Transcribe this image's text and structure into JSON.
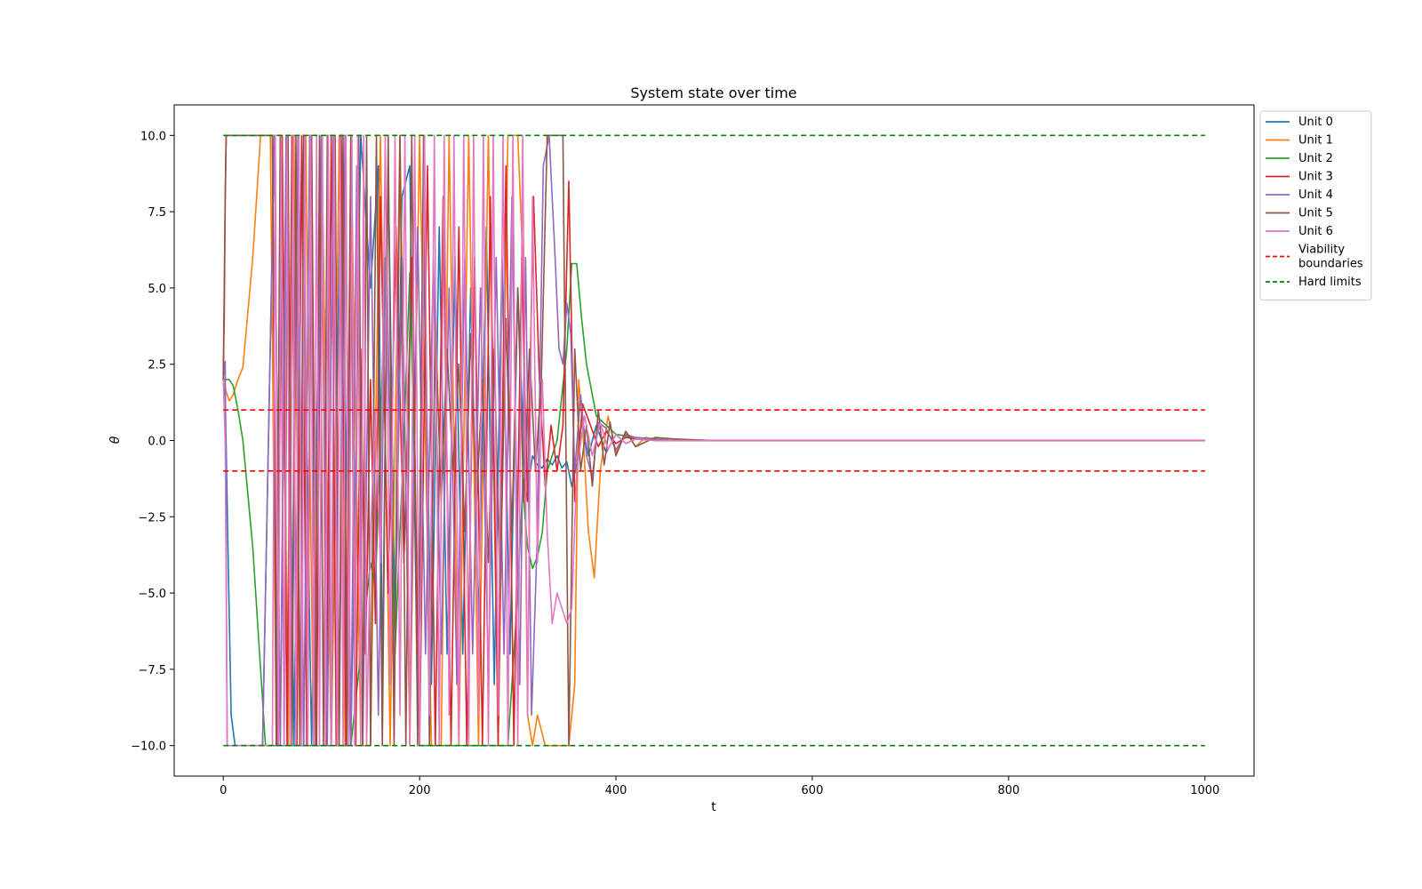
{
  "chart_data": {
    "type": "line",
    "title": "System state over time",
    "xlabel": "t",
    "ylabel": "θ",
    "xlim": [
      -50,
      1050
    ],
    "ylim": [
      -11,
      11
    ],
    "x_ticks": [
      0,
      200,
      400,
      600,
      800,
      1000
    ],
    "x_tick_labels": [
      "0",
      "200",
      "400",
      "600",
      "800",
      "1000"
    ],
    "y_ticks": [
      -10,
      -7.5,
      -5,
      -2.5,
      0,
      2.5,
      5,
      7.5,
      10
    ],
    "y_tick_labels": [
      "−10.0",
      "−7.5",
      "−5.0",
      "−2.5",
      "0.0",
      "2.5",
      "5.0",
      "7.5",
      "10.0"
    ],
    "grid": false,
    "legend_position": "outside-right",
    "series": [
      {
        "name": "Unit 0",
        "color": "#1f77b4",
        "x": [
          0,
          2,
          5,
          8,
          12,
          20,
          40,
          52,
          58,
          65,
          72,
          80,
          90,
          100,
          110,
          120,
          130,
          140,
          150,
          158,
          162,
          168,
          175,
          182,
          190,
          198,
          205,
          212,
          220,
          228,
          236,
          244,
          252,
          260,
          268,
          276,
          284,
          292,
          300,
          308,
          315,
          320,
          325,
          330,
          335,
          340,
          345,
          350,
          355,
          360,
          365,
          372,
          380,
          390,
          400,
          410,
          420,
          430,
          440,
          460,
          480,
          500,
          600,
          800,
          1000
        ],
        "values": [
          2,
          1.5,
          -4,
          -9,
          -10,
          -10,
          -10,
          10,
          -10,
          10,
          -10,
          10,
          -10,
          10,
          -10,
          10,
          -10,
          10,
          5,
          9,
          -8,
          9,
          -6,
          8,
          9,
          -9,
          6,
          -8,
          7,
          -7,
          6,
          -7,
          5,
          -6,
          7,
          -8,
          6,
          -7,
          5,
          -2,
          -0.5,
          -0.8,
          -0.9,
          -0.6,
          -0.8,
          -0.5,
          -0.9,
          -0.7,
          -1.5,
          -0.8,
          0.6,
          -0.5,
          0.5,
          -0.4,
          0.2,
          -0.1,
          0.05,
          0.02,
          0,
          0,
          0,
          0,
          0,
          0,
          0
        ]
      },
      {
        "name": "Unit 1",
        "color": "#ff7f0e",
        "x": [
          0,
          3,
          6,
          10,
          15,
          20,
          30,
          38,
          42,
          48,
          54,
          60,
          66,
          72,
          78,
          84,
          92,
          100,
          110,
          118,
          124,
          130,
          140,
          150,
          160,
          170,
          180,
          190,
          200,
          212,
          222,
          230,
          240,
          250,
          260,
          270,
          280,
          290,
          300,
          305,
          310,
          315,
          320,
          328,
          336,
          344,
          352,
          358,
          362,
          366,
          372,
          378,
          384,
          392,
          400,
          410,
          420,
          430,
          450,
          480,
          500,
          600,
          800,
          1000
        ],
        "values": [
          2,
          1.6,
          1.3,
          1.5,
          2,
          2.4,
          6,
          10,
          10,
          10,
          -10,
          10,
          -10,
          10,
          -10,
          10,
          -10,
          10,
          -10,
          10,
          -10,
          10,
          -10,
          -10,
          10,
          -10,
          10,
          -10,
          10,
          -10,
          -10,
          10,
          -10,
          10,
          -10,
          10,
          -10,
          10,
          10,
          6,
          -9,
          -10,
          -9,
          -10,
          -10,
          -10,
          -10,
          -8,
          2,
          0.5,
          -3,
          -4.5,
          -1,
          0.8,
          -0.4,
          0.3,
          -0.2,
          0.1,
          0,
          0,
          0,
          0,
          0,
          0
        ]
      },
      {
        "name": "Unit 2",
        "color": "#2ca02c",
        "x": [
          0,
          3,
          6,
          10,
          15,
          20,
          30,
          43,
          50,
          70,
          90,
          110,
          130,
          150,
          155,
          160,
          165,
          170,
          175,
          180,
          185,
          190,
          195,
          200,
          210,
          220,
          230,
          240,
          250,
          260,
          270,
          280,
          290,
          300,
          305,
          310,
          315,
          320,
          325,
          330,
          340,
          350,
          355,
          360,
          365,
          370,
          380,
          390,
          400,
          420,
          440,
          460,
          500,
          600,
          800,
          1000
        ],
        "values": [
          2,
          2,
          2,
          1.8,
          1,
          0,
          -3.5,
          -10,
          -10,
          -10,
          -10,
          -10,
          -10,
          -4,
          -4.8,
          0,
          6,
          0.5,
          -7,
          -3,
          1,
          5.5,
          -1,
          -10,
          -10,
          -10,
          -10,
          -10,
          -10,
          -10,
          -10,
          -10,
          -10,
          -5,
          -1.5,
          -3.5,
          -4.2,
          -3.8,
          -3,
          -1,
          0,
          3,
          5.8,
          5.8,
          4,
          2.5,
          0.8,
          0.5,
          0.2,
          0.1,
          0.05,
          0,
          0,
          0,
          0,
          0
        ]
      },
      {
        "name": "Unit 3",
        "color": "#d62728",
        "x": [
          0,
          1,
          2,
          3,
          5,
          10,
          20,
          40,
          50,
          55,
          60,
          65,
          70,
          75,
          80,
          85,
          90,
          95,
          100,
          105,
          110,
          115,
          120,
          125,
          130,
          135,
          140,
          145,
          150,
          155,
          160,
          168,
          176,
          184,
          192,
          200,
          208,
          216,
          224,
          232,
          240,
          248,
          256,
          264,
          272,
          280,
          288,
          296,
          304,
          310,
          316,
          322,
          328,
          334,
          340,
          346,
          352,
          358,
          366,
          374,
          382,
          390,
          400,
          410,
          420,
          440,
          460,
          500,
          600,
          800,
          1000
        ],
        "values": [
          2,
          4,
          8,
          10,
          10,
          10,
          10,
          10,
          10,
          -10,
          10,
          -10,
          10,
          -10,
          10,
          -10,
          10,
          -10,
          10,
          -10,
          10,
          -10,
          10,
          -10,
          10,
          -10,
          3,
          -7,
          2,
          -6,
          8,
          -5,
          7,
          -4,
          6,
          -10,
          9,
          -10,
          8,
          -10,
          7,
          -10,
          6,
          -10,
          8,
          -10,
          9,
          -10,
          6,
          -2,
          8,
          2,
          -1.5,
          0.5,
          -1,
          0.5,
          8.5,
          -2,
          1.2,
          0.5,
          -0.2,
          0.3,
          -0.1,
          0.1,
          0.05,
          0,
          0,
          0,
          0,
          0,
          0
        ]
      },
      {
        "name": "Unit 4",
        "color": "#9467bd",
        "x": [
          0,
          2,
          4,
          6,
          10,
          20,
          40,
          52,
          58,
          64,
          70,
          76,
          82,
          88,
          94,
          100,
          106,
          112,
          118,
          124,
          130,
          136,
          142,
          150,
          158,
          166,
          174,
          182,
          190,
          198,
          206,
          214,
          222,
          230,
          238,
          246,
          254,
          262,
          270,
          278,
          286,
          294,
          302,
          308,
          314,
          320,
          326,
          332,
          338,
          342,
          346,
          350,
          354,
          358,
          364,
          370,
          376,
          382,
          390,
          400,
          410,
          420,
          440,
          460,
          500,
          600,
          800,
          1000
        ],
        "values": [
          2,
          2.6,
          -10,
          -10,
          -10,
          -10,
          -10,
          10,
          -10,
          10,
          -9,
          10,
          -10,
          10,
          -8,
          10,
          -10,
          10,
          -10,
          10,
          -10,
          9,
          -10,
          8,
          -9,
          7,
          -8,
          6,
          -9,
          7,
          -7,
          6,
          -7,
          5,
          -8,
          6,
          -7,
          5,
          -8,
          6,
          -7,
          8,
          -8,
          6,
          -9,
          -3,
          9,
          10,
          6,
          3,
          2.5,
          4.5,
          3.5,
          -1,
          1.5,
          -0.5,
          -1.2,
          0.6,
          0.4,
          -0.3,
          0.2,
          0.1,
          0.03,
          0,
          0,
          0,
          0,
          0
        ]
      },
      {
        "name": "Unit 5",
        "color": "#8c564b",
        "x": [
          0,
          2,
          3,
          4,
          6,
          10,
          20,
          50,
          54,
          58,
          62,
          66,
          70,
          74,
          78,
          82,
          86,
          90,
          94,
          98,
          102,
          106,
          110,
          114,
          118,
          122,
          126,
          130,
          134,
          138,
          142,
          146,
          150,
          156,
          162,
          168,
          174,
          180,
          186,
          192,
          198,
          204,
          210,
          216,
          222,
          228,
          234,
          240,
          246,
          252,
          258,
          264,
          270,
          276,
          282,
          288,
          294,
          300,
          306,
          312,
          318,
          324,
          330,
          336,
          342,
          346,
          352,
          358,
          364,
          370,
          376,
          382,
          388,
          394,
          400,
          410,
          420,
          440,
          460,
          500,
          600,
          800,
          1000
        ],
        "values": [
          2,
          8,
          10,
          10,
          10,
          10,
          10,
          10,
          -10,
          10,
          -10,
          10,
          -10,
          10,
          -10,
          10,
          -10,
          10,
          -10,
          10,
          -10,
          10,
          -10,
          10,
          -10,
          10,
          -10,
          10,
          -10,
          10,
          -10,
          10,
          -10,
          10,
          -10,
          10,
          -10,
          10,
          -10,
          10,
          -10,
          10,
          -10,
          4,
          -2,
          3,
          -1,
          2.5,
          -3,
          3.5,
          -2,
          2,
          -4,
          3,
          -5,
          4,
          -3,
          5,
          -2,
          3,
          -1,
          2,
          10,
          10,
          10,
          10,
          -10,
          3,
          -1,
          0.5,
          -1.5,
          1,
          -0.8,
          0.6,
          -0.5,
          0.3,
          -0.2,
          0.1,
          0.05,
          0,
          0,
          0,
          0
        ]
      },
      {
        "name": "Unit 6",
        "color": "#e377c2",
        "x": [
          0,
          2,
          4,
          6,
          10,
          20,
          40,
          50,
          53,
          56,
          59,
          62,
          65,
          68,
          71,
          74,
          77,
          80,
          83,
          86,
          89,
          92,
          95,
          98,
          101,
          104,
          107,
          110,
          113,
          116,
          119,
          122,
          125,
          128,
          131,
          134,
          137,
          140,
          143,
          146,
          150,
          155,
          160,
          165,
          170,
          175,
          180,
          185,
          190,
          195,
          200,
          205,
          210,
          215,
          220,
          225,
          230,
          235,
          240,
          245,
          250,
          255,
          260,
          265,
          270,
          275,
          280,
          285,
          290,
          295,
          300,
          305,
          310,
          315,
          320,
          325,
          330,
          335,
          340,
          345,
          350,
          355,
          360,
          368,
          376,
          384,
          392,
          400,
          410,
          420,
          440,
          460,
          500,
          600,
          800,
          1000
        ],
        "values": [
          2,
          0,
          -10,
          -10,
          -10,
          -10,
          -10,
          -10,
          10,
          -10,
          10,
          -10,
          10,
          -10,
          10,
          -10,
          10,
          -10,
          10,
          -10,
          10,
          -10,
          10,
          -10,
          10,
          -10,
          10,
          -10,
          10,
          -10,
          10,
          -10,
          10,
          -10,
          10,
          -10,
          10,
          -10,
          10,
          -10,
          -3,
          1,
          -4,
          10,
          -8,
          10,
          -9,
          10,
          -10,
          10,
          -10,
          10,
          -9,
          10,
          -10,
          10,
          -9,
          10,
          -10,
          10,
          -10,
          10,
          -9,
          10,
          -10,
          10,
          -9,
          10,
          -10,
          10,
          -10,
          10,
          -9,
          8,
          -4,
          2,
          -3,
          -6,
          -5,
          -5.5,
          -6,
          -5.5,
          -1,
          0.8,
          -0.5,
          0.6,
          -0.3,
          0.2,
          -0.1,
          0.05,
          0,
          0,
          0,
          0,
          0,
          0
        ]
      }
    ],
    "reference_lines": [
      {
        "name": "Viability boundaries",
        "color": "#ff0000",
        "style": "dashed",
        "x": [
          0,
          1000
        ],
        "y_values": [
          1,
          -1
        ]
      },
      {
        "name": "Hard limits",
        "color": "#008000",
        "style": "dashed",
        "x": [
          0,
          1000
        ],
        "y_values": [
          10,
          -10
        ]
      }
    ],
    "legend_labels": [
      {
        "label": "Unit 0",
        "color": "#1f77b4",
        "dashed": false
      },
      {
        "label": "Unit 1",
        "color": "#ff7f0e",
        "dashed": false
      },
      {
        "label": "Unit 2",
        "color": "#2ca02c",
        "dashed": false
      },
      {
        "label": "Unit 3",
        "color": "#d62728",
        "dashed": false
      },
      {
        "label": "Unit 4",
        "color": "#9467bd",
        "dashed": false
      },
      {
        "label": "Unit 5",
        "color": "#8c564b",
        "dashed": false
      },
      {
        "label": "Unit 6",
        "color": "#e377c2",
        "dashed": false
      },
      {
        "label": "Viability\nboundaries",
        "color": "#ff0000",
        "dashed": true
      },
      {
        "label": "Hard limits",
        "color": "#008000",
        "dashed": true
      }
    ]
  }
}
